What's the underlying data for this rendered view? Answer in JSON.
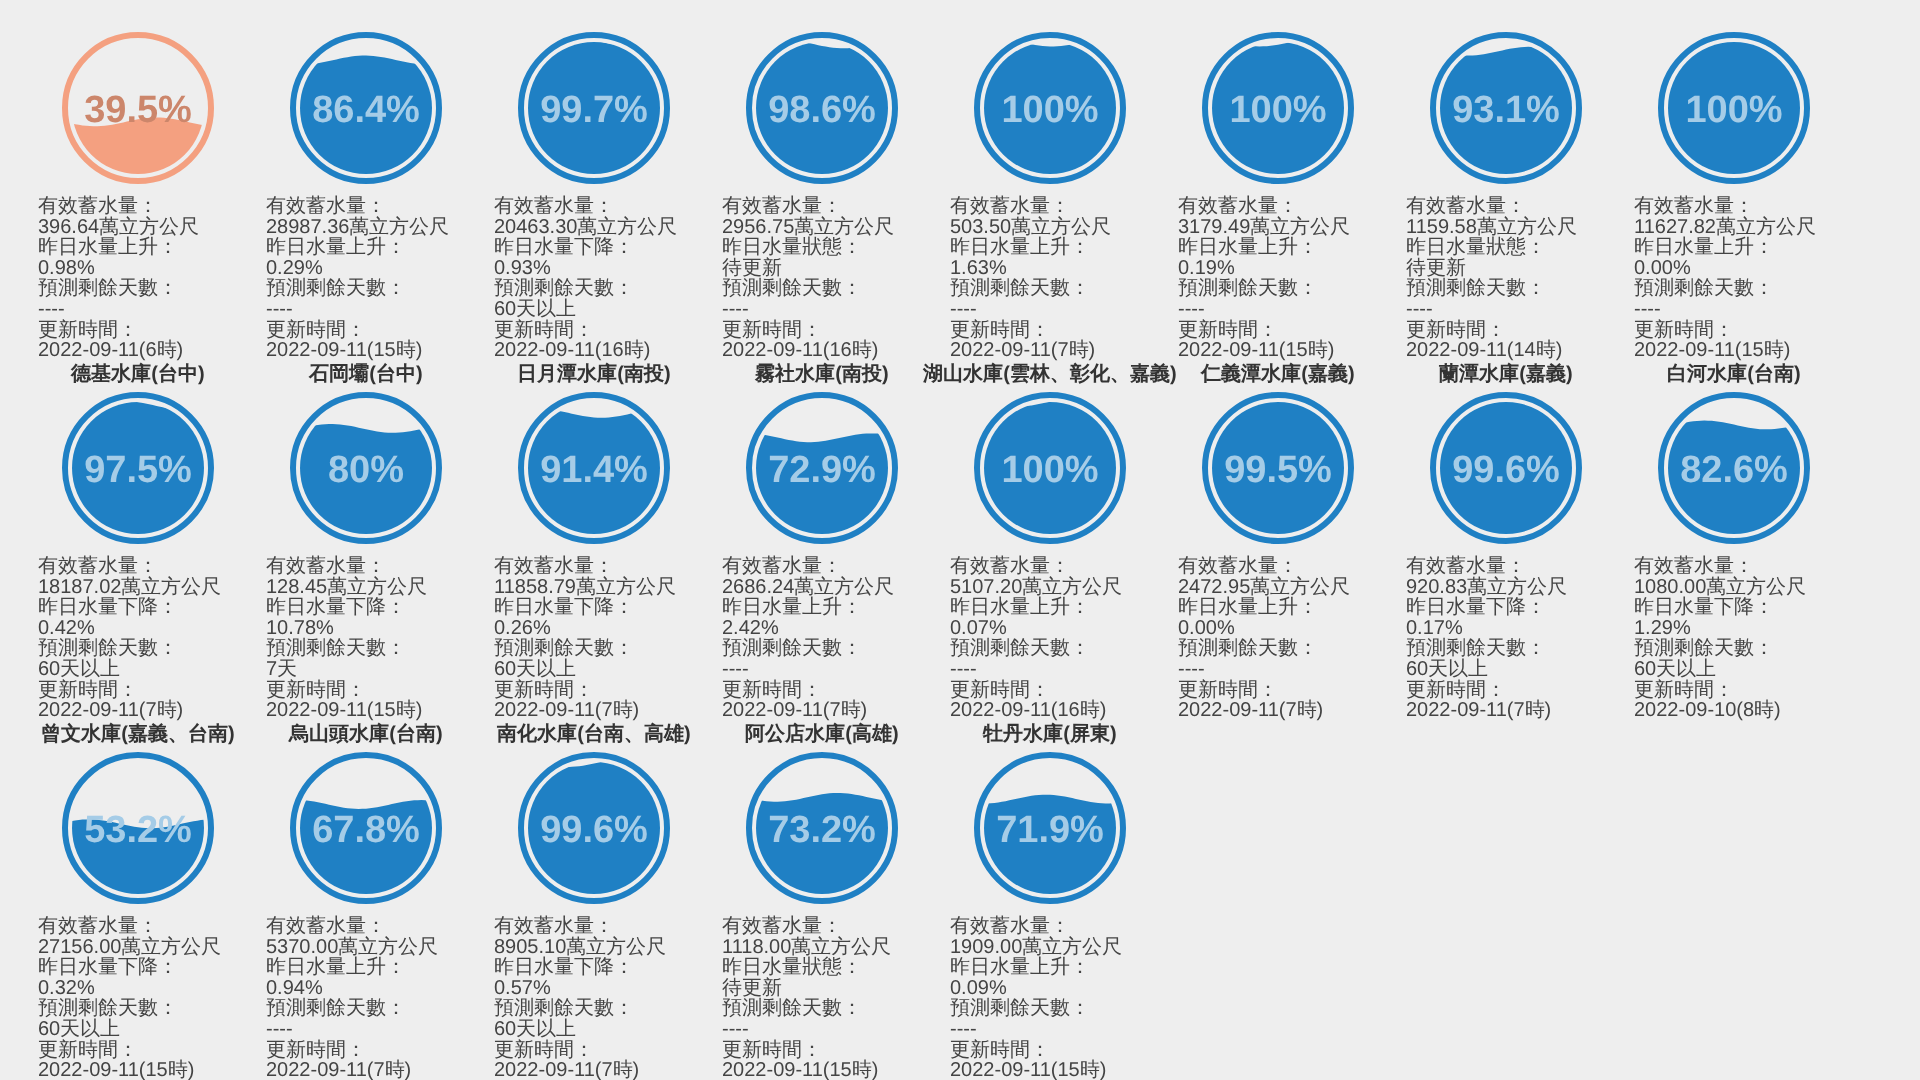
{
  "chart_data": {
    "type": "other",
    "categories": [
      null,
      null,
      null,
      null,
      null,
      null,
      null,
      null,
      "德基水庫(台中)",
      "石岡壩(台中)",
      "日月潭水庫(南投)",
      "霧社水庫(南投)",
      "湖山水庫(雲林、彰化、嘉義)",
      "仁義潭水庫(嘉義)",
      "蘭潭水庫(嘉義)",
      "白河水庫(台南)",
      "曾文水庫(嘉義、台南)",
      "烏山頭水庫(台南)",
      "南化水庫(台南、高雄)",
      "阿公店水庫(高雄)",
      "牡丹水庫(屏東)"
    ],
    "values": [
      39.5,
      86.4,
      99.7,
      98.6,
      100,
      100,
      93.1,
      100,
      97.5,
      80,
      91.4,
      72.9,
      100,
      99.5,
      99.6,
      82.6,
      53.2,
      67.8,
      99.6,
      73.2,
      71.9
    ],
    "value_labels": [
      "39.5%",
      "86.4%",
      "99.7%",
      "98.6%",
      "100%",
      "100%",
      "93.1%",
      "100%",
      "97.5%",
      "80%",
      "91.4%",
      "72.9%",
      "100%",
      "99.5%",
      "99.6%",
      "82.6%",
      "53.2%",
      "67.8%",
      "99.6%",
      "73.2%",
      "71.9%"
    ],
    "colors": [
      "#f4a080",
      "#1f80c4",
      "#1f80c4",
      "#1f80c4",
      "#1f80c4",
      "#1f80c4",
      "#1f80c4",
      "#1f80c4",
      "#1f80c4",
      "#1f80c4",
      "#1f80c4",
      "#1f80c4",
      "#1f80c4",
      "#1f80c4",
      "#1f80c4",
      "#1f80c4",
      "#1f80c4",
      "#1f80c4",
      "#1f80c4",
      "#1f80c4",
      "#1f80c4"
    ],
    "annotations": [
      "有效蓄水量：396.64萬立方公尺",
      "昨日水量上升：0.98%",
      "預測剩餘天數：----",
      "更新時間：2022-09-11(6時)",
      "有效蓄水量：28987.36萬立方公尺",
      "昨日水量上升：0.29%",
      "預測剩餘天數：----",
      "更新時間：2022-09-11(15時)",
      "有效蓄水量：20463.30萬立方公尺",
      "昨日水量下降：0.93%",
      "預測剩餘天數：60天以上",
      "更新時間：2022-09-11(16時)",
      "有效蓄水量：2956.75萬立方公尺",
      "昨日水量狀態：待更新",
      "預測剩餘天數：----",
      "更新時間：2022-09-11(16時)",
      "有效蓄水量：503.50萬立方公尺",
      "昨日水量上升：1.63%",
      "預測剩餘天數：----",
      "更新時間：2022-09-11(7時)",
      "有效蓄水量：3179.49萬立方公尺",
      "昨日水量上升：0.19%",
      "預測剩餘天數：----",
      "更新時間：2022-09-11(15時)",
      "有效蓄水量：1159.58萬立方公尺",
      "昨日水量狀態：待更新",
      "預測剩餘天數：----",
      "更新時間：2022-09-11(14時)",
      "有效蓄水量：11627.82萬立方公尺",
      "昨日水量上升：0.00%",
      "預測剩餘天數：----",
      "更新時間：2022-09-11(15時)",
      "有效蓄水量：18187.02萬立方公尺",
      "昨日水量下降：0.42%",
      "預測剩餘天數：60天以上",
      "更新時間：2022-09-11(7時)",
      "有效蓄水量：128.45萬立方公尺",
      "昨日水量下降：10.78%",
      "預測剩餘天數：7天",
      "更新時間：2022-09-11(15時)",
      "有效蓄水量：11858.79萬立方公尺",
      "昨日水量下降：0.26%",
      "預測剩餘天數：60天以上",
      "更新時間：2022-09-11(7時)",
      "有效蓄水量：2686.24萬立方公尺",
      "昨日水量上升：2.42%",
      "預測剩餘天數：----",
      "更新時間：2022-09-11(7時)",
      "有效蓄水量：5107.20萬立方公尺",
      "昨日水量上升：0.07%",
      "預測剩餘天數：----",
      "更新時間：2022-09-11(16時)",
      "有效蓄水量：2472.95萬立方公尺",
      "昨日水量上升：0.00%",
      "預測剩餘天數：----",
      "更新時間：2022-09-11(7時)",
      "有效蓄水量：920.83萬立方公尺",
      "昨日水量下降：0.17%",
      "預測剩餘天數：60天以上",
      "更新時間：2022-09-11(7時)",
      "有效蓄水量：1080.00萬立方公尺",
      "昨日水量下降：1.29%",
      "預測剩餘天數：60天以上",
      "更新時間：2022-09-10(8時)",
      "有效蓄水量：27156.00萬立方公尺",
      "昨日水量下降：0.32%",
      "預測剩餘天數：60天以上",
      "更新時間：2022-09-11(15時)",
      "有效蓄水量：5370.00萬立方公尺",
      "昨日水量上升：0.94%",
      "預測剩餘天數：----",
      "更新時間：2022-09-11(7時)",
      "有效蓄水量：8905.10萬立方公尺",
      "昨日水量下降：0.57%",
      "預測剩餘天數：60天以上",
      "更新時間：2022-09-11(7時)",
      "有效蓄水量：1118.00萬立方公尺",
      "昨日水量狀態：待更新",
      "預測剩餘天數：----",
      "更新時間：2022-09-11(15時)",
      "有效蓄水量：1909.00萬立方公尺",
      "昨日水量上升：0.09%",
      "預測剩餘天數：----",
      "更新時間：2022-09-11(15時)"
    ]
  }
}
